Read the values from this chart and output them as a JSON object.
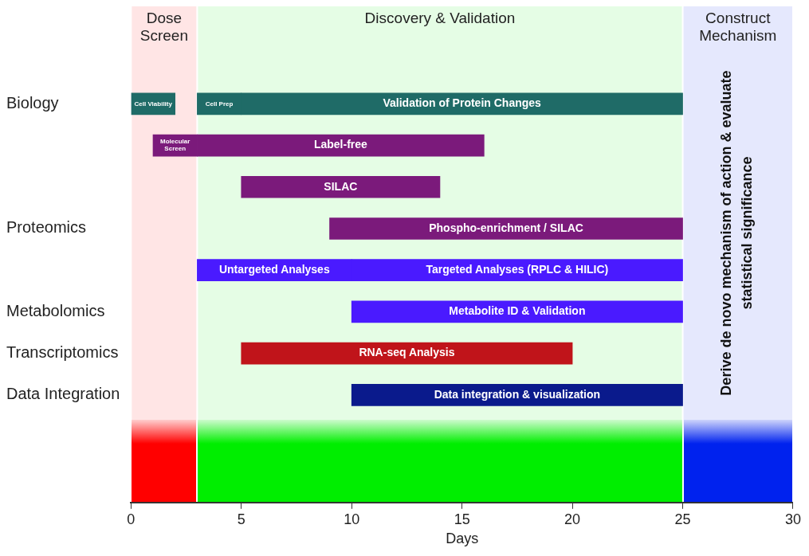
{
  "chart_data": {
    "type": "bar",
    "orientation": "horizontal",
    "xlabel": "Days",
    "xlim": [
      0,
      30
    ],
    "xticks": [
      0,
      5,
      10,
      15,
      20,
      25,
      30
    ],
    "categories": [
      "Biology",
      null,
      null,
      "Proteomics",
      null,
      "Metabolomics",
      "Transcriptomics",
      "Data Integration"
    ],
    "series": [
      {
        "base": [
          0,
          1,
          5,
          9,
          3,
          10,
          5,
          10
        ],
        "values": [
          2,
          2,
          9,
          16,
          7,
          15,
          15,
          15
        ],
        "colors": [
          "#1f6b67",
          "#7b1a7b",
          "#7b1a7b",
          "#7b1a7b",
          "#4a1aff",
          "#4a1aff",
          "#c0141a",
          "#0a1a8c"
        ],
        "value_labels": [
          "Cell Viability",
          "Molecular Screen",
          "SILAC",
          "Phospho-enrichment / SILAC",
          "Untargeted Analyses",
          "Metabolite ID & Validation",
          "RNA-seq Analysis",
          "Data integration & visualization"
        ]
      },
      {
        "base": [
          3,
          3,
          null,
          null,
          10,
          null,
          null,
          null
        ],
        "values": [
          2,
          13,
          null,
          null,
          15,
          null,
          null,
          null
        ],
        "colors": [
          "#1f6b67",
          "#7b1a7b",
          null,
          null,
          "#4a1aff",
          null,
          null,
          null
        ],
        "value_labels": [
          "Cell Prep",
          "Label-free",
          null,
          null,
          "Targeted Analyses (RPLC & HILIC)",
          null,
          null,
          null
        ]
      },
      {
        "base": [
          5,
          null,
          null,
          null,
          null,
          null,
          null,
          null
        ],
        "values": [
          20,
          null,
          null,
          null,
          null,
          null,
          null,
          null
        ],
        "colors": [
          "#1f6b67",
          null,
          null,
          null,
          null,
          null,
          null,
          null
        ],
        "value_labels": [
          "Validation of Protein Changes",
          null,
          null,
          null,
          null,
          null,
          null,
          null
        ]
      }
    ],
    "bands": [
      {
        "axis": "x",
        "from": 0,
        "to": 3,
        "label": "Dose Screen",
        "color": "#ff0000"
      },
      {
        "axis": "x",
        "from": 3,
        "to": 25,
        "label": "Discovery & Validation",
        "color": "#00ee00"
      },
      {
        "axis": "x",
        "from": 25,
        "to": 30,
        "label": "Construct Mechanism",
        "color": "#0022ee"
      }
    ],
    "annotations": [
      "Derive de novo mechanism of action & evaluate statistical significance"
    ]
  }
}
